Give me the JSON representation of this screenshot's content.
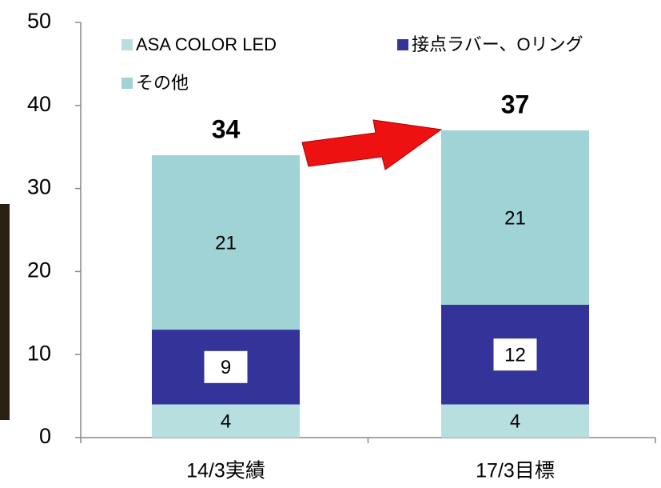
{
  "chart_data": {
    "type": "stacked_bar",
    "categories": [
      "14/3実績",
      "17/3目標"
    ],
    "series": [
      {
        "name": "ASA COLOR LED",
        "color": "#b7dfe0",
        "values": [
          4,
          4
        ]
      },
      {
        "name": "接点ラバー、Oリング",
        "color": "#333399",
        "values": [
          9,
          12
        ]
      },
      {
        "name": "その他",
        "color": "#9fd3d6",
        "values": [
          21,
          21
        ]
      }
    ],
    "totals": [
      34,
      37
    ],
    "ylim": [
      0,
      50
    ],
    "yticks": [
      0,
      10,
      20,
      30,
      40,
      50
    ]
  }
}
